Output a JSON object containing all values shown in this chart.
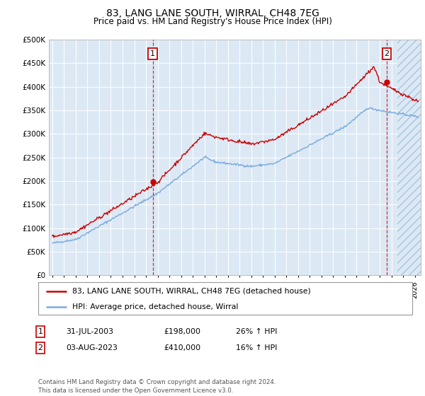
{
  "title": "83, LANG LANE SOUTH, WIRRAL, CH48 7EG",
  "subtitle": "Price paid vs. HM Land Registry's House Price Index (HPI)",
  "ylim": [
    0,
    500000
  ],
  "yticks": [
    0,
    50000,
    100000,
    150000,
    200000,
    250000,
    300000,
    350000,
    400000,
    450000,
    500000
  ],
  "xlim_start": 1994.7,
  "xlim_end": 2026.5,
  "bg_color": "#dce9f5",
  "hatch_color": "#a8c4dc",
  "grid_color": "#ffffff",
  "sale1_x": 2003.58,
  "sale1_y": 198000,
  "sale2_x": 2023.59,
  "sale2_y": 410000,
  "legend_label1": "83, LANG LANE SOUTH, WIRRAL, CH48 7EG (detached house)",
  "legend_label2": "HPI: Average price, detached house, Wirral",
  "table_row1": [
    "1",
    "31-JUL-2003",
    "£198,000",
    "26% ↑ HPI"
  ],
  "table_row2": [
    "2",
    "03-AUG-2023",
    "£410,000",
    "16% ↑ HPI"
  ],
  "footer": "Contains HM Land Registry data © Crown copyright and database right 2024.\nThis data is licensed under the Open Government Licence v3.0.",
  "red_color": "#cc0000",
  "blue_color": "#7aaadd",
  "hatch_start": 2024.5
}
